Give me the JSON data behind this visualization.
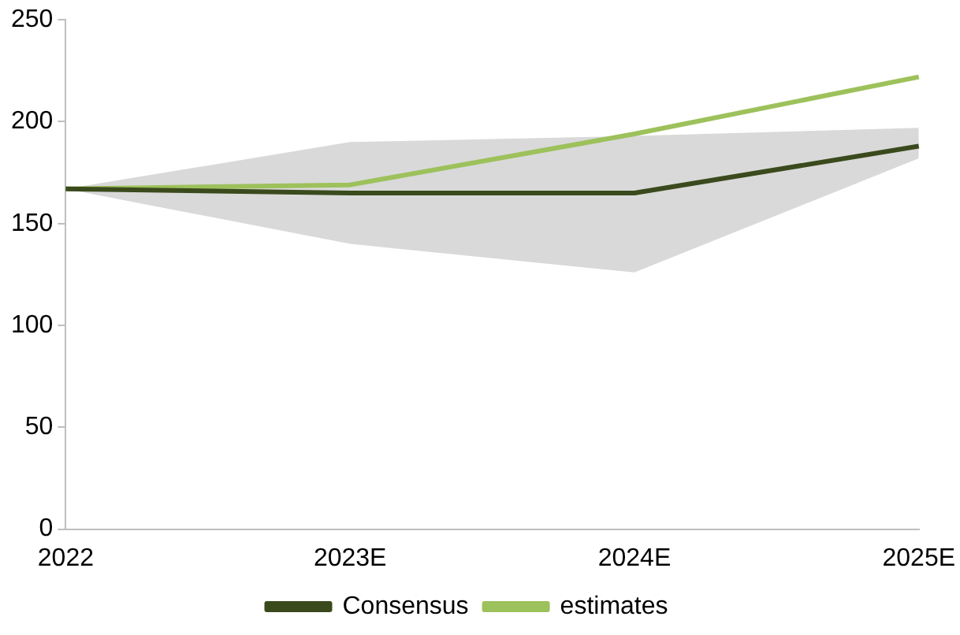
{
  "chart_data": {
    "type": "line",
    "categories": [
      "2022",
      "2023E",
      "2024E",
      "2025E"
    ],
    "series": [
      {
        "name": "Consensus",
        "color": "#3b4a1d",
        "values": [
          167,
          165,
          165,
          188
        ],
        "lower": [
          167,
          140,
          126,
          182
        ],
        "upper": [
          167,
          190,
          193,
          197
        ]
      },
      {
        "name": "estimates",
        "color": "#9dc15b",
        "values": [
          167,
          169,
          194,
          222
        ]
      }
    ],
    "ylim": [
      0,
      250
    ],
    "yticks": [
      0,
      50,
      100,
      150,
      200,
      250
    ],
    "grid": false,
    "legend": "bottom",
    "marker": "none",
    "line_style": "solid"
  }
}
